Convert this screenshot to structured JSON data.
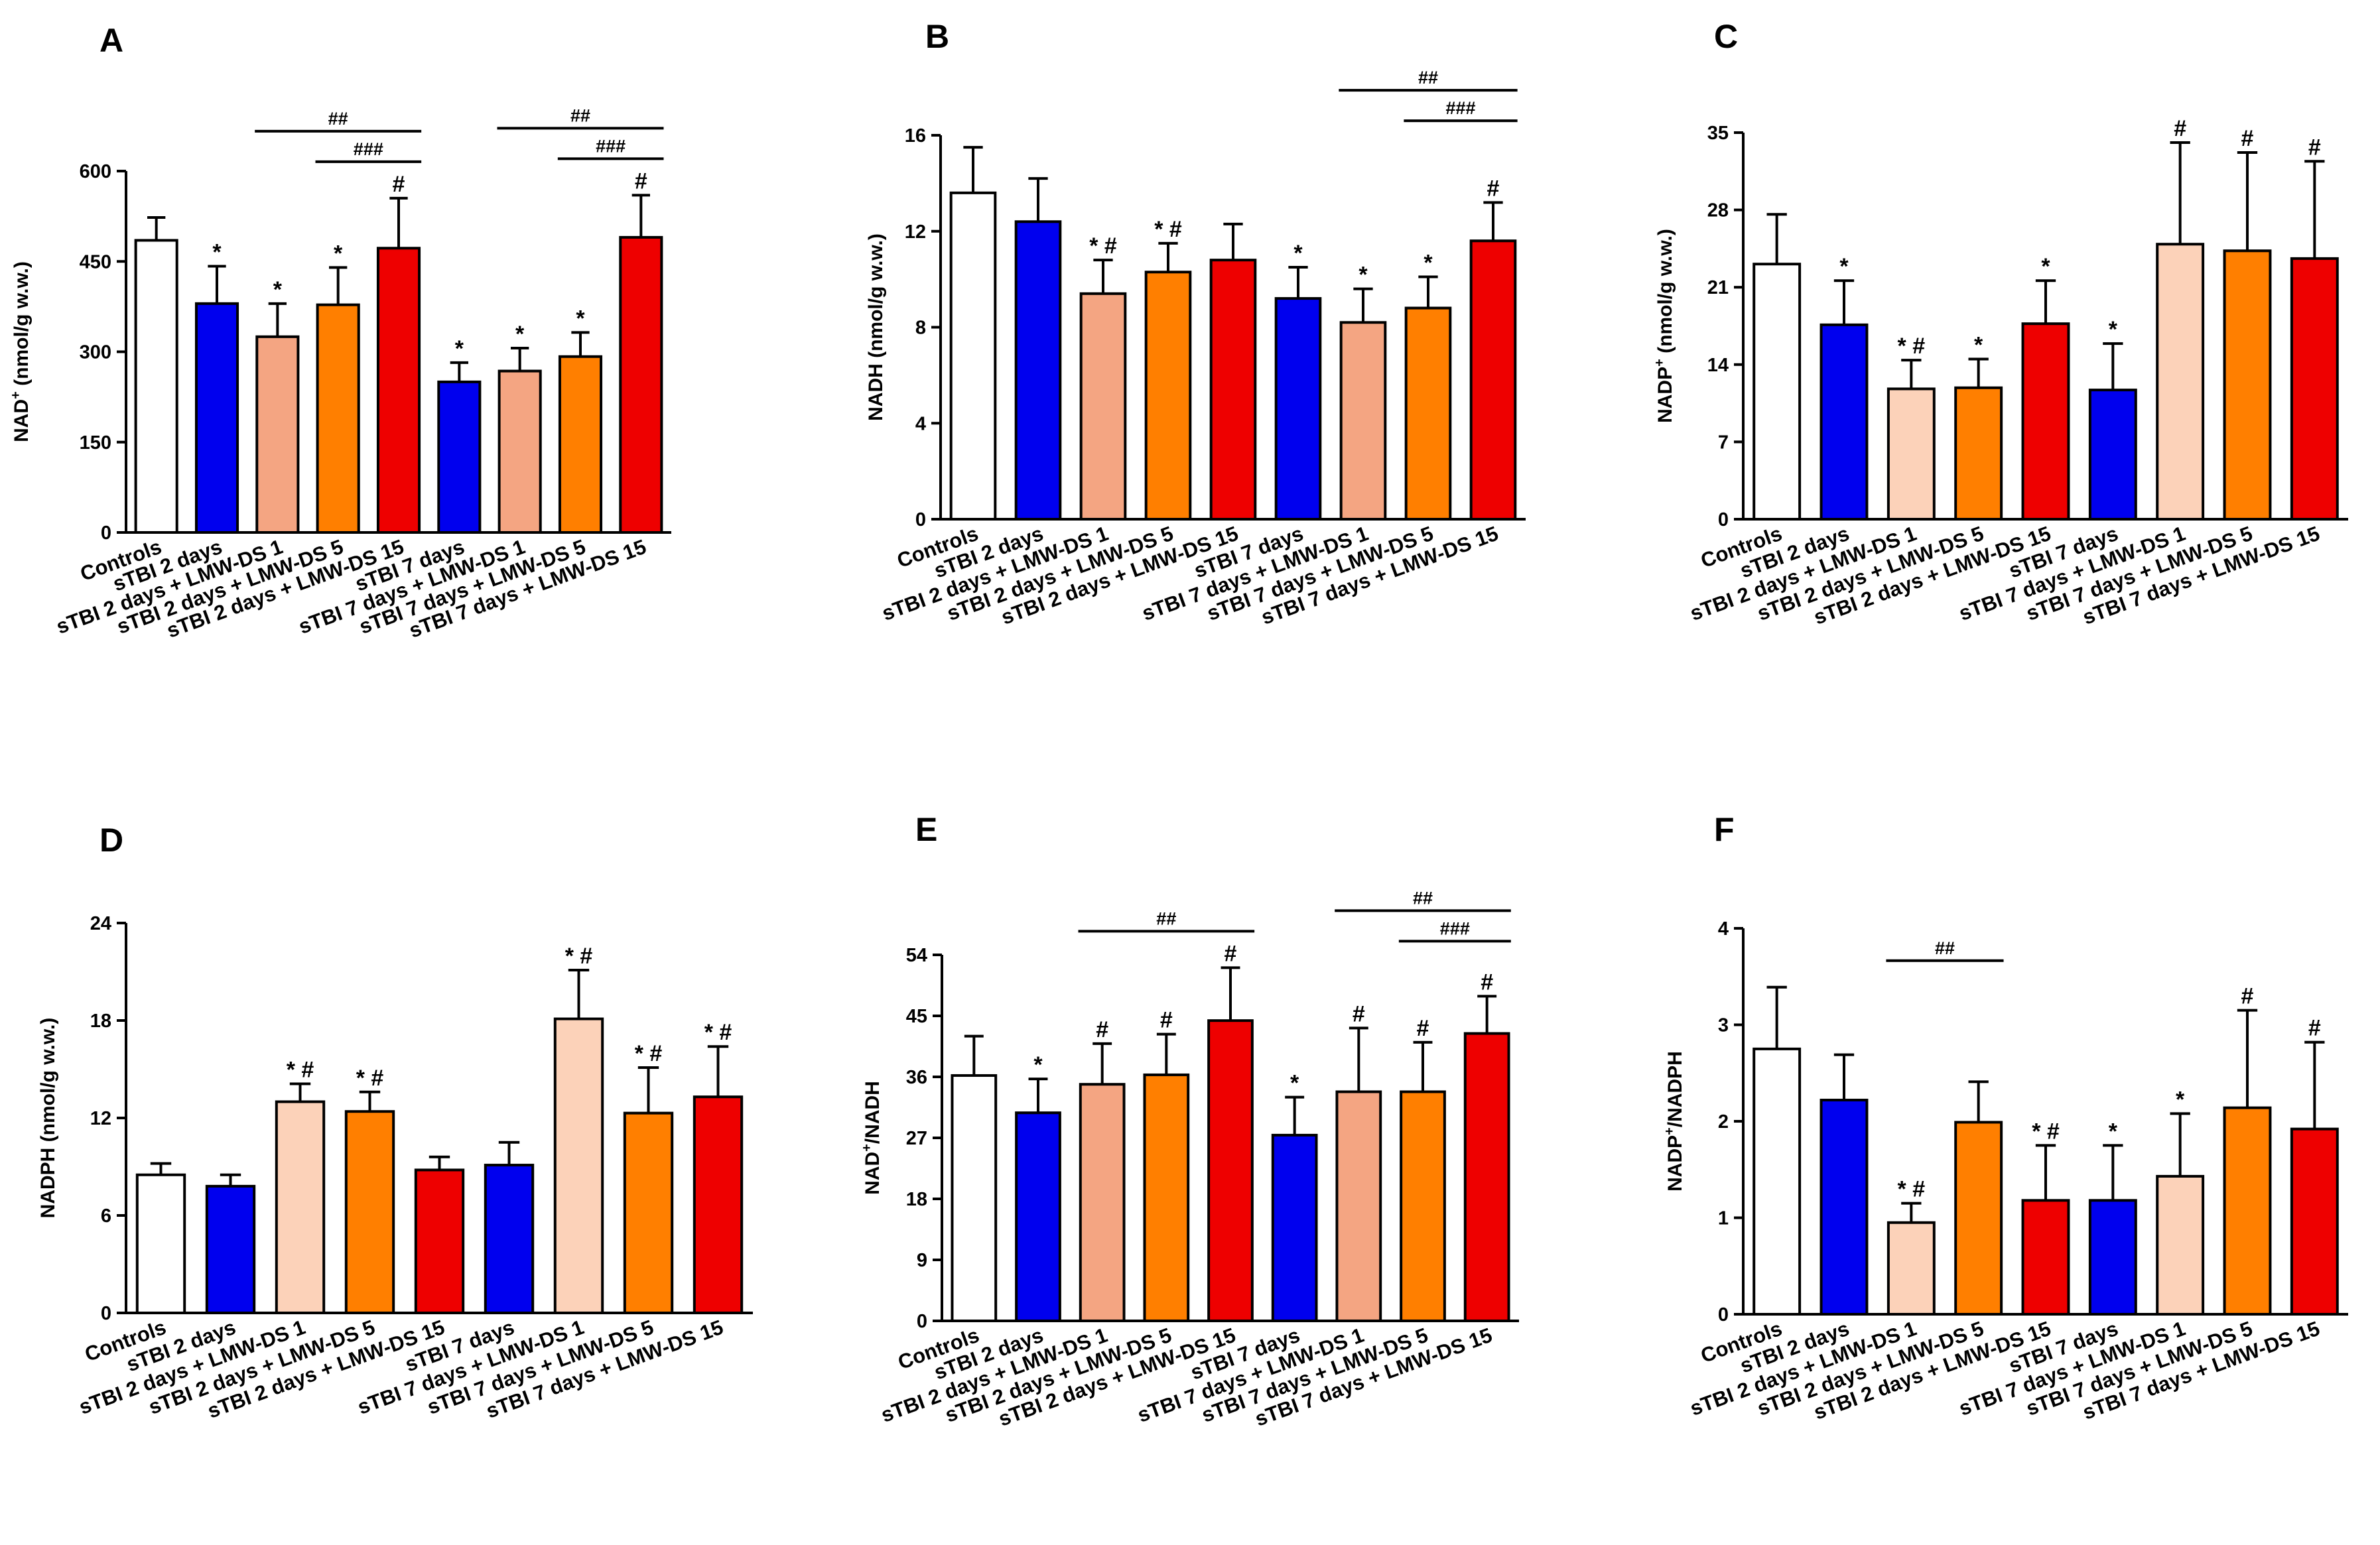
{
  "figure": {
    "description_free": true
  },
  "colors": {
    "Controls": "#ffffff",
    "sTBI": "#0000ee",
    "LMW-DS 1": "#f4a582",
    "LMW-DS 1 light": "#fcd2b9",
    "LMW-DS 5": "#ff7f00",
    "LMW-DS 15": "#ee0000"
  },
  "chart_data": [
    {
      "panel": "A",
      "type": "bar",
      "ylabel_parts": [
        "NAD",
        "+",
        " (nmol/g w.w.)"
      ],
      "ylim": [
        0,
        600
      ],
      "yticks": [
        0,
        150,
        300,
        450,
        600
      ],
      "categories": [
        "Controls",
        "sTBI 2 days",
        "sTBI 2 days + LMW-DS 1",
        "sTBI 2 days + LMW-DS 5",
        "sTBI 2 days + LMW-DS 15",
        "sTBI 7 days",
        "sTBI 7 days + LMW-DS 1",
        "sTBI 7 days + LMW-DS 5",
        "sTBI 7 days + LMW-DS 15"
      ],
      "values": [
        485,
        380,
        325,
        378,
        472,
        250,
        268,
        292,
        490
      ],
      "errors": [
        38,
        62,
        55,
        62,
        83,
        32,
        38,
        40,
        70
      ],
      "fill_keys": [
        "Controls",
        "sTBI",
        "LMW-DS 1",
        "LMW-DS 5",
        "LMW-DS 15",
        "sTBI",
        "LMW-DS 1",
        "LMW-DS 5",
        "LMW-DS 15"
      ],
      "annotations": [
        "",
        "*",
        "*",
        "*",
        "#",
        "*",
        "*",
        "*",
        "#"
      ],
      "brackets": [
        {
          "from": 2,
          "to": 4,
          "label": "##",
          "level": 2
        },
        {
          "from": 3,
          "to": 4,
          "label": "###",
          "level": 1
        },
        {
          "from": 6,
          "to": 8,
          "label": "##",
          "level": 2
        },
        {
          "from": 7,
          "to": 8,
          "label": "###",
          "level": 1
        }
      ]
    },
    {
      "panel": "B",
      "type": "bar",
      "ylabel_parts": [
        "NADH (nmol/g w.w.)"
      ],
      "ylim": [
        0,
        16
      ],
      "yticks": [
        0,
        4,
        8,
        12,
        16
      ],
      "categories": [
        "Controls",
        "sTBI 2 days",
        "sTBI 2 days + LMW-DS 1",
        "sTBI 2 days + LMW-DS 5",
        "sTBI 2 days + LMW-DS 15",
        "sTBI 7 days",
        "sTBI 7 days + LMW-DS 1",
        "sTBI 7 days + LMW-DS 5",
        "sTBI 7 days + LMW-DS 15"
      ],
      "values": [
        13.6,
        12.4,
        9.4,
        10.3,
        10.8,
        9.2,
        8.2,
        8.8,
        11.6
      ],
      "errors": [
        1.9,
        1.8,
        1.4,
        1.2,
        1.5,
        1.3,
        1.4,
        1.3,
        1.6
      ],
      "fill_keys": [
        "Controls",
        "sTBI",
        "LMW-DS 1",
        "LMW-DS 5",
        "LMW-DS 15",
        "sTBI",
        "LMW-DS 1",
        "LMW-DS 5",
        "LMW-DS 15"
      ],
      "annotations": [
        "",
        "",
        "* #",
        "* #",
        "",
        "*",
        "*",
        "*",
        "#"
      ],
      "brackets": [
        {
          "from": 6,
          "to": 8,
          "label": "##",
          "level": 2
        },
        {
          "from": 7,
          "to": 8,
          "label": "###",
          "level": 1
        }
      ]
    },
    {
      "panel": "C",
      "type": "bar",
      "ylabel_parts": [
        "NADP",
        "+",
        " (nmol/g w.w.)"
      ],
      "ylim": [
        0,
        35
      ],
      "yticks": [
        0,
        7,
        14,
        21,
        28,
        35
      ],
      "categories": [
        "Controls",
        "sTBI 2 days",
        "sTBI 2 days + LMW-DS 1",
        "sTBI 2 days + LMW-DS 5",
        "sTBI 2 days + LMW-DS 15",
        "sTBI 7 days",
        "sTBI 7 days + LMW-DS 1",
        "sTBI 7 days + LMW-DS 5",
        "sTBI 7 days + LMW-DS 15"
      ],
      "values": [
        23.1,
        17.6,
        11.8,
        11.9,
        17.7,
        11.7,
        24.9,
        24.3,
        23.6
      ],
      "errors": [
        4.5,
        4.0,
        2.6,
        2.6,
        3.9,
        4.2,
        9.2,
        8.9,
        8.8
      ],
      "fill_keys": [
        "Controls",
        "sTBI",
        "LMW-DS 1 light",
        "LMW-DS 5",
        "LMW-DS 15",
        "sTBI",
        "LMW-DS 1 light",
        "LMW-DS 5",
        "LMW-DS 15"
      ],
      "annotations": [
        "",
        "*",
        "* #",
        "*",
        "*",
        "*",
        "#",
        "#",
        "#"
      ],
      "brackets": []
    },
    {
      "panel": "D",
      "type": "bar",
      "ylabel_parts": [
        "NADPH (nmol/g w.w.)"
      ],
      "ylim": [
        0,
        24
      ],
      "yticks": [
        0,
        6,
        12,
        18,
        24
      ],
      "categories": [
        "Controls",
        "sTBI 2 days",
        "sTBI 2 days + LMW-DS 1",
        "sTBI 2 days + LMW-DS 5",
        "sTBI 2 days + LMW-DS 15",
        "sTBI 7 days",
        "sTBI 7 days + LMW-DS 1",
        "sTBI 7 days + LMW-DS 5",
        "sTBI 7 days + LMW-DS 15"
      ],
      "values": [
        8.5,
        7.8,
        13.0,
        12.4,
        8.8,
        9.1,
        18.1,
        12.3,
        13.3
      ],
      "errors": [
        0.7,
        0.7,
        1.1,
        1.2,
        0.8,
        1.4,
        3.0,
        2.8,
        3.1
      ],
      "fill_keys": [
        "Controls",
        "sTBI",
        "LMW-DS 1 light",
        "LMW-DS 5",
        "LMW-DS 15",
        "sTBI",
        "LMW-DS 1 light",
        "LMW-DS 5",
        "LMW-DS 15"
      ],
      "annotations": [
        "",
        "",
        "* #",
        "* #",
        "",
        "",
        "* #",
        "* #",
        "* #"
      ],
      "brackets": []
    },
    {
      "panel": "E",
      "type": "bar",
      "ylabel_parts": [
        "NAD",
        "+",
        "/NADH"
      ],
      "ylim": [
        0,
        54
      ],
      "yticks": [
        0,
        9,
        18,
        27,
        36,
        45,
        54
      ],
      "categories": [
        "Controls",
        "sTBI 2 days",
        "sTBI 2 days + LMW-DS 1",
        "sTBI 2 days + LMW-DS 5",
        "sTBI 2 days + LMW-DS 15",
        "sTBI 7 days",
        "sTBI 7 days + LMW-DS 1",
        "sTBI 7 days + LMW-DS 5",
        "sTBI 7 days + LMW-DS 15"
      ],
      "values": [
        36.2,
        30.7,
        34.9,
        36.3,
        44.3,
        27.4,
        33.8,
        33.8,
        42.4
      ],
      "errors": [
        5.8,
        5.0,
        6.0,
        6.0,
        7.8,
        5.6,
        9.4,
        7.3,
        5.5
      ],
      "fill_keys": [
        "Controls",
        "sTBI",
        "LMW-DS 1",
        "LMW-DS 5",
        "LMW-DS 15",
        "sTBI",
        "LMW-DS 1",
        "LMW-DS 5",
        "LMW-DS 15"
      ],
      "annotations": [
        "",
        "*",
        "#",
        "#",
        "#",
        "*",
        "#",
        "#",
        "#"
      ],
      "brackets": [
        {
          "from": 2,
          "to": 4,
          "label": "##",
          "level": 1
        },
        {
          "from": 6,
          "to": 8,
          "label": "##",
          "level": 2
        },
        {
          "from": 7,
          "to": 8,
          "label": "###",
          "level": 1
        }
      ]
    },
    {
      "panel": "F",
      "type": "bar",
      "ylabel_parts": [
        "NADP",
        "+",
        "/NADPH"
      ],
      "ylim": [
        0,
        4
      ],
      "yticks": [
        0,
        1,
        2,
        3,
        4
      ],
      "categories": [
        "Controls",
        "sTBI 2 days",
        "sTBI 2 days + LMW-DS 1",
        "sTBI 2 days + LMW-DS 5",
        "sTBI 2 days + LMW-DS 15",
        "sTBI 7 days",
        "sTBI 7 days + LMW-DS 1",
        "sTBI 7 days + LMW-DS 5",
        "sTBI 7 days + LMW-DS 15"
      ],
      "values": [
        2.75,
        2.22,
        0.95,
        1.99,
        1.18,
        1.18,
        1.43,
        2.14,
        1.92
      ],
      "errors": [
        0.64,
        0.47,
        0.2,
        0.42,
        0.57,
        0.57,
        0.65,
        1.01,
        0.9
      ],
      "fill_keys": [
        "Controls",
        "sTBI",
        "LMW-DS 1 light",
        "LMW-DS 5",
        "LMW-DS 15",
        "sTBI",
        "LMW-DS 1 light",
        "LMW-DS 5",
        "LMW-DS 15"
      ],
      "annotations": [
        "",
        "",
        "* #",
        "",
        "* #",
        "*",
        "*",
        "#",
        "#"
      ],
      "brackets": [
        {
          "from": 2,
          "to": 3,
          "label": "##",
          "level": 1
        }
      ]
    }
  ]
}
